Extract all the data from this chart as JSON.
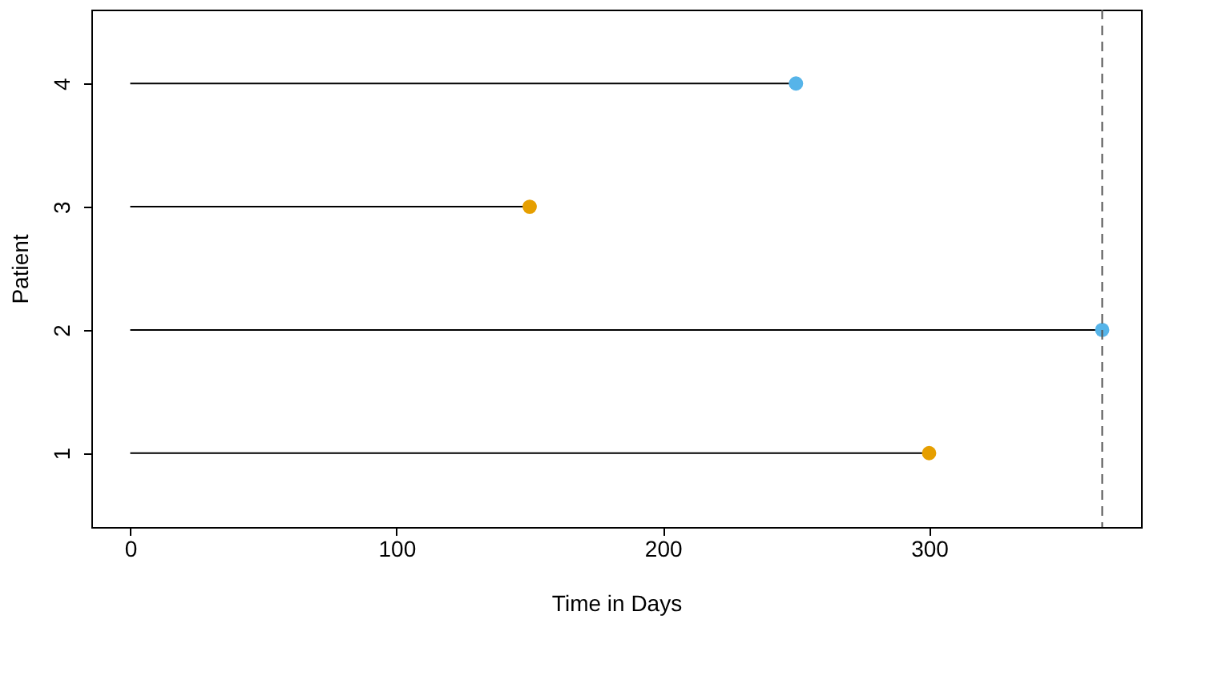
{
  "chart_data": {
    "type": "lollipop",
    "orientation": "horizontal",
    "xlabel": "Time in Days",
    "ylabel": "Patient",
    "categories": [
      "4",
      "3",
      "2",
      "1"
    ],
    "series": [
      {
        "color": "#e69f00",
        "values": [
          null,
          150,
          null,
          300
        ],
        "marker": "circle"
      },
      {
        "color": "#56b4e9",
        "values": [
          250,
          null,
          365,
          null
        ],
        "marker": "circle"
      }
    ],
    "xlim": [
      -14.6,
      379.6
    ],
    "xticks": [
      0,
      100,
      200,
      300
    ],
    "grid": false,
    "ref_lines": [
      {
        "axis": "x",
        "value": 365,
        "color": "#555555",
        "line_style": "dashed"
      }
    ]
  }
}
